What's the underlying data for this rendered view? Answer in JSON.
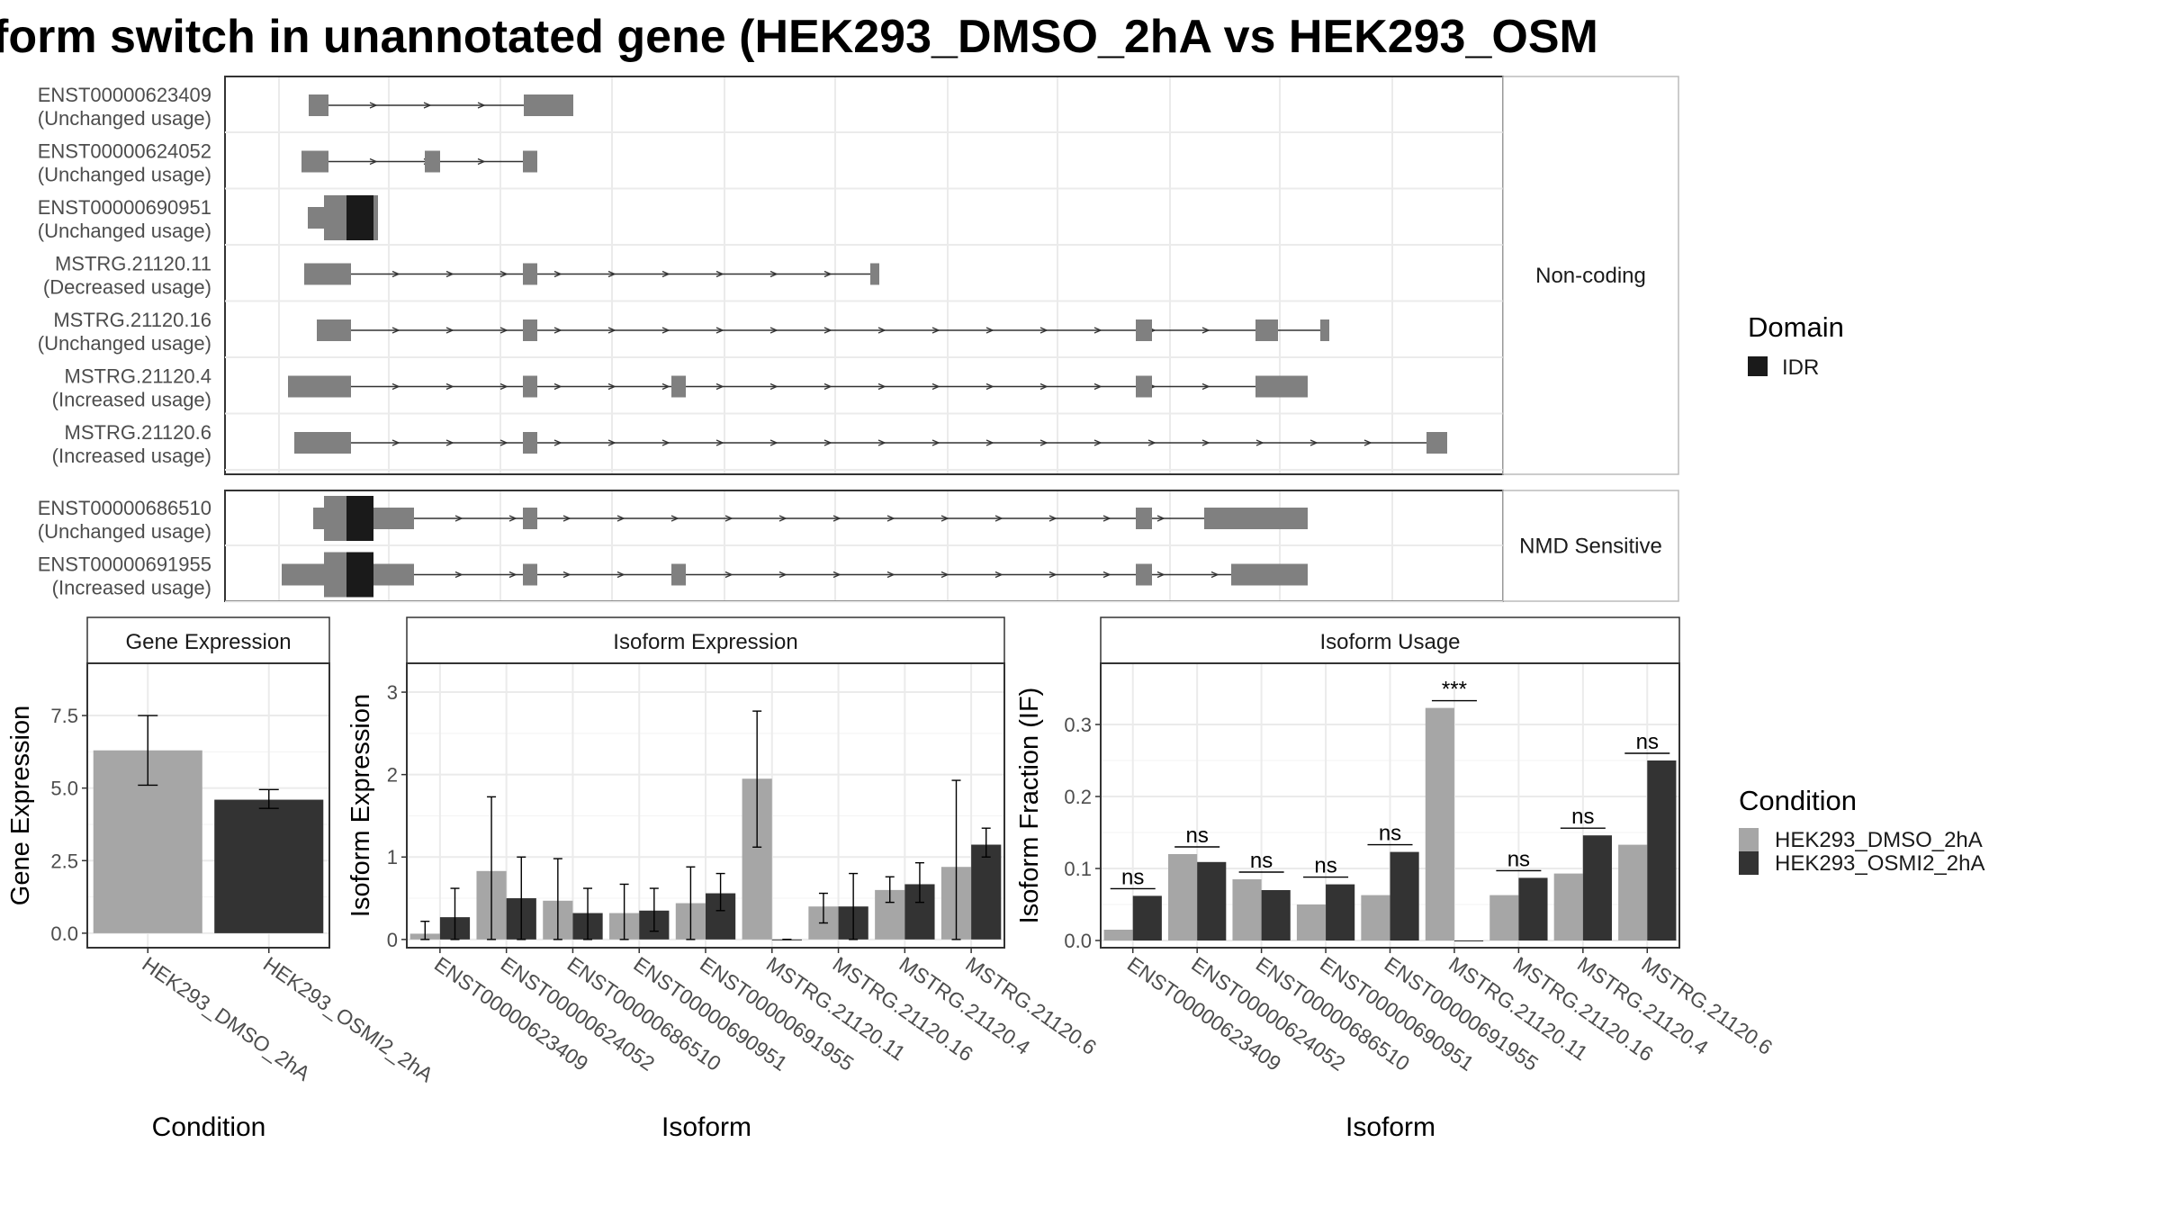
{
  "title": "form switch in unannotated gene (HEK293_DMSO_2hA vs HEK293_OSM",
  "colors": {
    "exon": "#808080",
    "idr": "#1a1a1a",
    "dmso": "#a6a6a6",
    "osmi": "#333333",
    "grid": "#ebebeb",
    "strip_bg": "#ffffff",
    "border": "#333333",
    "text": "#4d4d4d"
  },
  "transcript_panels": [
    {
      "facet_label": "Non-coding",
      "transcripts": [
        {
          "id": "ENST00000623409",
          "status": "(Unchanged usage)"
        },
        {
          "id": "ENST00000624052",
          "status": "(Unchanged usage)"
        },
        {
          "id": "ENST00000690951",
          "status": "(Unchanged usage)"
        },
        {
          "id": "MSTRG.21120.11",
          "status": "(Decreased usage)"
        },
        {
          "id": "MSTRG.21120.16",
          "status": "(Unchanged usage)"
        },
        {
          "id": "MSTRG.21120.4",
          "status": "(Increased usage)"
        },
        {
          "id": "MSTRG.21120.6",
          "status": "(Increased usage)"
        }
      ]
    },
    {
      "facet_label": "NMD Sensitive",
      "transcripts": [
        {
          "id": "ENST00000686510",
          "status": "(Unchanged usage)"
        },
        {
          "id": "ENST00000691955",
          "status": "(Increased usage)"
        }
      ]
    }
  ],
  "domain_legend": {
    "title": "Domain",
    "items": [
      "IDR"
    ]
  },
  "condition_legend": {
    "title": "Condition",
    "items": [
      "HEK293_DMSO_2hA",
      "HEK293_OSMI2_2hA"
    ]
  },
  "chart_data": [
    {
      "type": "bar",
      "panel_title": "Gene Expression",
      "xlabel": "Condition",
      "ylabel": "Gene Expression",
      "ylim": [
        -0.5,
        9.3
      ],
      "yticks": [
        "0.0",
        "2.5",
        "5.0",
        "7.5"
      ],
      "categories": [
        "HEK293_DMSO_2hA",
        "HEK293_OSMI2_2hA"
      ],
      "values": [
        6.3,
        4.6
      ],
      "error_low": [
        5.1,
        4.3
      ],
      "error_high": [
        7.5,
        4.95
      ]
    },
    {
      "type": "bar",
      "panel_title": "Isoform Expression",
      "xlabel": "Isoform",
      "ylabel": "Isoform Expression",
      "ylim": [
        -0.1,
        3.35
      ],
      "yticks": [
        "0",
        "1",
        "2",
        "3"
      ],
      "categories": [
        "ENST00000623409",
        "ENST00000624052",
        "ENST00000686510",
        "ENST00000690951",
        "ENST00000691955",
        "MSTRG.21120.11",
        "MSTRG.21120.16",
        "MSTRG.21120.4",
        "MSTRG.21120.6"
      ],
      "series": [
        {
          "name": "HEK293_DMSO_2hA",
          "values": [
            0.07,
            0.83,
            0.47,
            0.32,
            0.44,
            1.95,
            0.4,
            0.6,
            0.88
          ],
          "error_low": [
            0.0,
            0.0,
            0.0,
            0.0,
            0.0,
            1.12,
            0.2,
            0.45,
            0.0
          ],
          "error_high": [
            0.22,
            1.73,
            0.98,
            0.67,
            0.88,
            2.77,
            0.56,
            0.76,
            1.93
          ]
        },
        {
          "name": "HEK293_OSMI2_2hA",
          "values": [
            0.27,
            0.5,
            0.32,
            0.35,
            0.56,
            0.0,
            0.4,
            0.67,
            1.15
          ],
          "error_low": [
            0.0,
            0.0,
            0.0,
            0.1,
            0.35,
            0.0,
            0.0,
            0.45,
            1.0
          ],
          "error_high": [
            0.62,
            1.0,
            0.62,
            0.62,
            0.8,
            0.0,
            0.8,
            0.93,
            1.35
          ]
        }
      ]
    },
    {
      "type": "bar",
      "panel_title": "Isoform Usage",
      "xlabel": "Isoform",
      "ylabel": "Isoform Fraction (IF)",
      "ylim": [
        -0.01,
        0.385
      ],
      "yticks": [
        "0.0",
        "0.1",
        "0.2",
        "0.3"
      ],
      "categories": [
        "ENST00000623409",
        "ENST00000624052",
        "ENST00000686510",
        "ENST00000690951",
        "ENST00000691955",
        "MSTRG.21120.11",
        "MSTRG.21120.16",
        "MSTRG.21120.4",
        "MSTRG.21120.6"
      ],
      "series": [
        {
          "name": "HEK293_DMSO_2hA",
          "values": [
            0.015,
            0.12,
            0.085,
            0.05,
            0.063,
            0.323,
            0.063,
            0.093,
            0.133
          ]
        },
        {
          "name": "HEK293_OSMI2_2hA",
          "values": [
            0.062,
            0.109,
            0.07,
            0.078,
            0.123,
            0.0,
            0.087,
            0.146,
            0.25
          ]
        }
      ],
      "significance": [
        "ns",
        "ns",
        "ns",
        "ns",
        "ns",
        "***",
        "ns",
        "ns",
        "ns"
      ]
    }
  ]
}
